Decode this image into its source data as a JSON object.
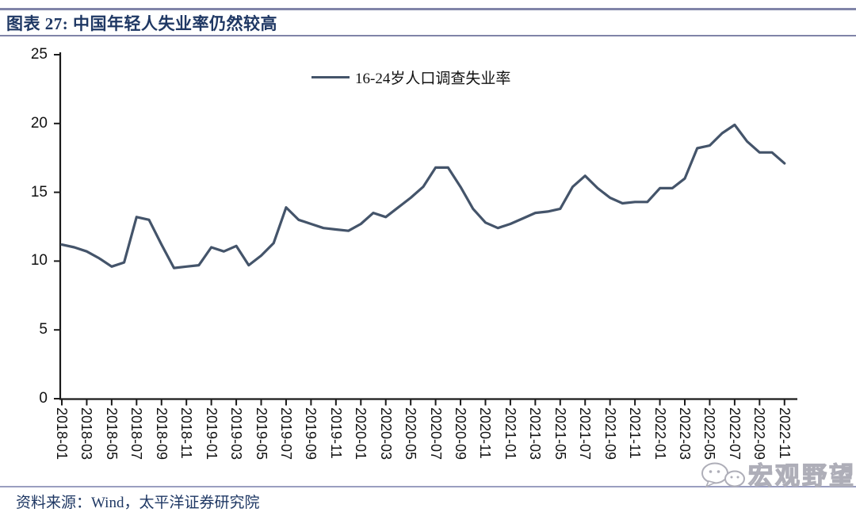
{
  "header": {
    "title": "图表 27:  中国年轻人失业率仍然较高"
  },
  "footer": {
    "source": "资料来源：Wind，太平洋证券研究院"
  },
  "watermark": {
    "icon": "wechat-icon",
    "text": "宏观野望"
  },
  "colors": {
    "series_line": "#44546A",
    "title_text": "#1F3864",
    "header_rule": "#8084a8",
    "axis": "#1a1a1a",
    "watermark_gray": "#aeaeb8"
  },
  "chart_data": {
    "type": "line",
    "figure_label": "图表 27",
    "title": "中国年轻人失业率仍然较高",
    "grid": false,
    "legend_position": "top-center",
    "ylabel": "",
    "xlabel": "",
    "ylim": [
      0,
      25
    ],
    "y_ticks": [
      0,
      5,
      10,
      15,
      20,
      25
    ],
    "x_start": "2018-01",
    "x_freq": "monthly",
    "x_tick_labels": [
      "2018-01",
      "2018-03",
      "2018-05",
      "2018-07",
      "2018-09",
      "2018-11",
      "2019-01",
      "2019-03",
      "2019-05",
      "2019-07",
      "2019-09",
      "2019-11",
      "2020-01",
      "2020-03",
      "2020-05",
      "2020-07",
      "2020-09",
      "2020-11",
      "2021-01",
      "2021-03",
      "2021-05",
      "2021-07",
      "2021-09",
      "2021-11",
      "2022-01",
      "2022-03",
      "2022-05",
      "2022-07",
      "2022-09",
      "2022-11"
    ],
    "series": [
      {
        "name": "16-24岁人口调查失业率",
        "color": "#44546A",
        "values": [
          11.2,
          11.0,
          10.7,
          10.2,
          9.6,
          9.9,
          13.2,
          13.0,
          11.2,
          9.5,
          9.6,
          9.7,
          11.0,
          10.7,
          11.1,
          9.7,
          10.4,
          11.3,
          13.9,
          13.0,
          12.7,
          12.4,
          12.3,
          12.2,
          12.7,
          13.5,
          13.2,
          13.9,
          14.6,
          15.4,
          16.8,
          16.8,
          15.4,
          13.8,
          12.8,
          12.4,
          12.7,
          13.1,
          13.5,
          13.6,
          13.8,
          15.4,
          16.2,
          15.3,
          14.6,
          14.2,
          14.3,
          14.3,
          15.3,
          15.3,
          16.0,
          18.2,
          18.4,
          19.3,
          19.9,
          18.7,
          17.9,
          17.9,
          17.1
        ]
      }
    ]
  }
}
